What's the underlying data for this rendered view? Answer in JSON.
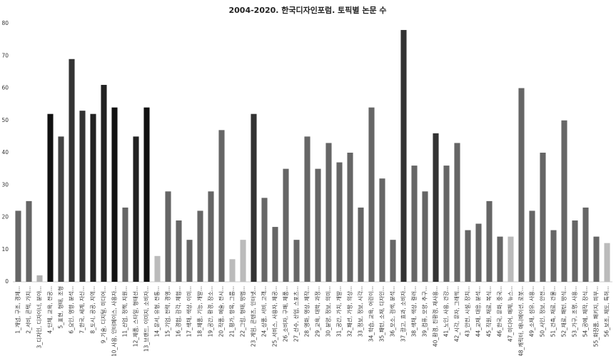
{
  "chart_data": {
    "type": "bar",
    "title": "2004-2020. 한국디자인포럼. 토픽별 논문 수",
    "categories": [
      "1_개념, 구조, 경제...",
      "2_서비, 콘텍, 가치...",
      "3_디자인, 디자이너, 분야...",
      "4_단체, 교육, 전공...",
      "5_표현, 형태, 조형",
      "6_요인, 영향, 분석...",
      "7_한국, 세계, 자신...",
      "8_도시, 공공, 지역...",
      "9_기술, 디지털, 미디어...",
      "10_사용, 인터페이스, 사용자...",
      "11_산업, 정책, 지원...",
      "12_제품, 스타일, 형태선...",
      "13_브랜드, 이미지, 소비자...",
      "14_문서, 유형, 전통...",
      "15_기업, 전략, 경영...",
      "16_경험, 감각, 체험...",
      "17_색채, 색상, 이미...",
      "18_제품, 기능, 개발...",
      "19_공간, 환경, 장소...",
      "20_작품, 예술, 전시...",
      "21_평가, 항목, 그룹...",
      "22_그림, 형태, 방법...",
      "23_게임, 콘텐츠, 인터넷...",
      "24_상품, 서비, 고객...",
      "25_서비스, 사용자, 제공...",
      "26_소비자, 구매, 제품...",
      "27_선수, 산업, 스포츠...",
      "28_영화, 영상, 제작...",
      "29_교육, 대학, 과정...",
      "30_분양, 정보, 의미...",
      "31_공간, 가치, 개발...",
      "32_패션, 가방, 의상...",
      "33_정보, 정보, 시각...",
      "34_학습, 교육, 어린이...",
      "35_패턴, 소재, 디자인...",
      "36_모소, 검색, 분석...",
      "37_광고, 효과, 소비자...",
      "38_색채, 색상, 컬러...",
      "39_컴퓨, 모양, 추구...",
      "40_환경, 친환경, 재사용...",
      "41_노인, 사용, 건강...",
      "42_시각, 문자, 그래픽...",
      "43_안전, 시설, 장치...",
      "44_교재, 대응, 분석...",
      "45_직원, 재료, 복식...",
      "46_한국, 문화, 중국...",
      "47_미디어, 매체, 뉴스...",
      "48_캐릭터, 애니메이션, 로봇...",
      "49_소재, 섬유, 사용...",
      "50_사인, 정보, 안전...",
      "51_건축, 재료, 건물...",
      "52_재료, 패턴, 방식...",
      "53_가구, 조명, 사용...",
      "54_공예, 제작, 장식...",
      "55_화장품, 패키지, 피부...",
      "56_보조, 제도, 특허..."
    ],
    "values": [
      22,
      25,
      2,
      52,
      45,
      69,
      53,
      52,
      61,
      54,
      23,
      45,
      54,
      8,
      28,
      19,
      13,
      22,
      28,
      47,
      7,
      13,
      52,
      26,
      17,
      35,
      13,
      45,
      35,
      43,
      37,
      40,
      23,
      54,
      32,
      13,
      78,
      36,
      28,
      46,
      36,
      43,
      16,
      18,
      25,
      14,
      14,
      60,
      22,
      40,
      16,
      50,
      19,
      23,
      14,
      12
    ],
    "colors": [
      "#666666",
      "#666666",
      "#b0b0b0",
      "#111111",
      "#444444",
      "#333333",
      "#333333",
      "#222222",
      "#222222",
      "#111111",
      "#666666",
      "#222222",
      "#111111",
      "#bbbbbb",
      "#666666",
      "#666666",
      "#666666",
      "#666666",
      "#666666",
      "#666666",
      "#bbbbbb",
      "#bbbbbb",
      "#333333",
      "#666666",
      "#666666",
      "#666666",
      "#666666",
      "#666666",
      "#666666",
      "#666666",
      "#666666",
      "#666666",
      "#666666",
      "#666666",
      "#666666",
      "#666666",
      "#333333",
      "#666666",
      "#666666",
      "#333333",
      "#666666",
      "#666666",
      "#666666",
      "#666666",
      "#666666",
      "#666666",
      "#bbbbbb",
      "#666666",
      "#666666",
      "#666666",
      "#666666",
      "#666666",
      "#666666",
      "#666666",
      "#666666",
      "#bbbbbb"
    ],
    "ylim": [
      0,
      80
    ],
    "yticks": [
      0,
      10,
      20,
      30,
      40,
      50,
      60,
      70,
      80
    ],
    "grid": false
  }
}
